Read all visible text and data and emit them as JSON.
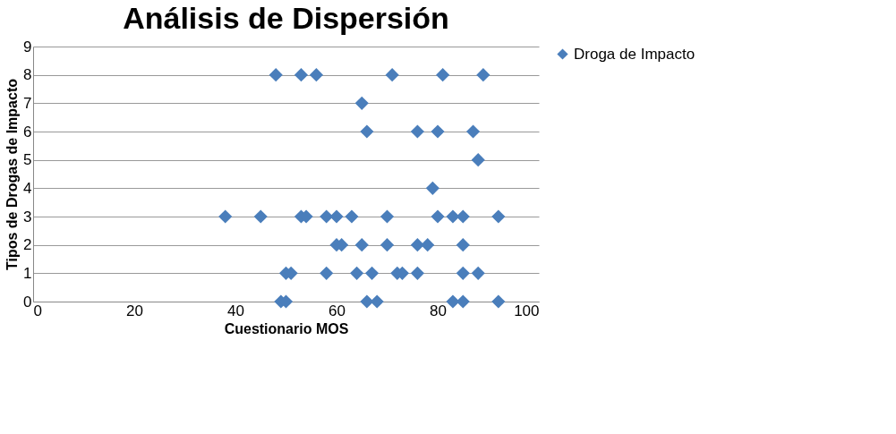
{
  "chart_data": {
    "type": "scatter",
    "title": "Análisis de Dispersión",
    "xlabel": "Cuestionario MOS",
    "ylabel": "Tipos de Drogas de Impacto",
    "series": [
      {
        "name": "Droga de Impacto",
        "color": "#4a7ebb",
        "x": [
          48,
          53,
          56,
          71,
          81,
          89,
          65,
          66,
          76,
          80,
          87,
          88,
          79,
          38,
          45,
          53,
          54,
          58,
          60,
          63,
          70,
          80,
          83,
          85,
          92,
          60,
          61,
          65,
          70,
          76,
          78,
          85,
          50,
          51,
          58,
          64,
          67,
          72,
          73,
          76,
          85,
          88,
          49,
          50,
          66,
          68,
          83,
          85,
          92
        ],
        "values": [
          8,
          8,
          8,
          8,
          8,
          8,
          7,
          6,
          6,
          6,
          6,
          5,
          4,
          3,
          3,
          3,
          3,
          3,
          3,
          3,
          3,
          3,
          3,
          3,
          3,
          2,
          2,
          2,
          2,
          2,
          2,
          2,
          1,
          1,
          1,
          1,
          1,
          1,
          1,
          1,
          1,
          1,
          0,
          0,
          0,
          0,
          0,
          0,
          0
        ]
      }
    ],
    "xlim": [
      0,
      100
    ],
    "xticks": [
      0,
      20,
      40,
      60,
      80,
      100
    ],
    "ylim": [
      0,
      9
    ],
    "yticks": [
      0,
      1,
      2,
      3,
      4,
      5,
      6,
      7,
      8,
      9
    ],
    "grid": "y",
    "legend": "right",
    "marker": "diamond"
  }
}
